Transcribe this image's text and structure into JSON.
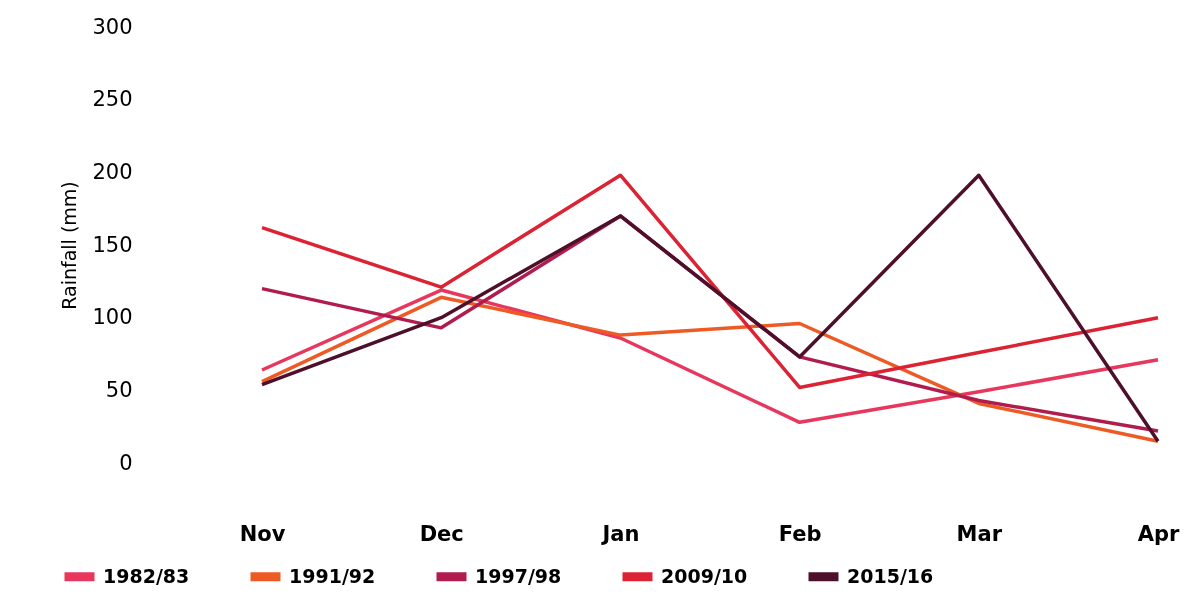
{
  "chart_data": {
    "type": "line",
    "ylabel": "Rainfall (mm)",
    "categories": [
      "Nov",
      "Dec",
      "Jan",
      "Feb",
      "Mar",
      "Apr"
    ],
    "series": [
      {
        "name": "1982/83",
        "color": "#e8375c",
        "values": [
          64,
          119,
          86,
          28,
          49,
          71
        ]
      },
      {
        "name": "1991/92",
        "color": "#ee5a24",
        "values": [
          56,
          114,
          88,
          96,
          41,
          15
        ]
      },
      {
        "name": "1997/98",
        "color": "#b01c4e",
        "values": [
          120,
          93,
          170,
          73,
          43,
          22
        ]
      },
      {
        "name": "2009/10",
        "color": "#dc2334",
        "values": [
          162,
          121,
          198,
          52,
          76,
          100
        ]
      },
      {
        "name": "2015/16",
        "color": "#4e0f2a",
        "values": [
          54,
          100,
          170,
          73,
          198,
          15
        ]
      }
    ],
    "ylim": [
      0,
      300
    ],
    "yticks": [
      0,
      50,
      100,
      150,
      200,
      250,
      300
    ],
    "grid": false,
    "legend": "bottom",
    "marker": "none",
    "line_style": "solid"
  }
}
